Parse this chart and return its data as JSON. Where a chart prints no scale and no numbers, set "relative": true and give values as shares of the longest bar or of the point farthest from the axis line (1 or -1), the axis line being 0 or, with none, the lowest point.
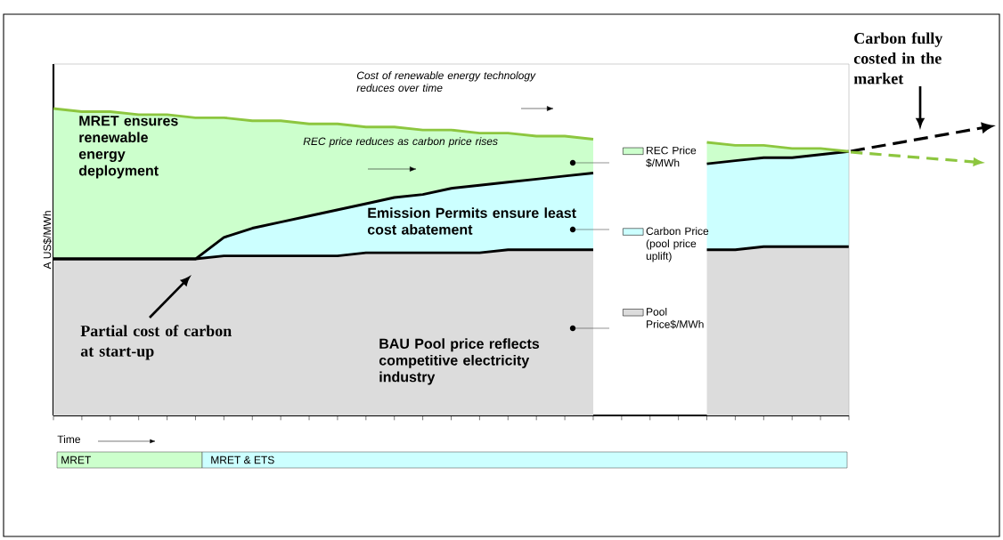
{
  "chart_data": {
    "type": "area",
    "stacked": true,
    "relative": true,
    "legend": "right",
    "ylabel": "A US$/MWh",
    "categories": [
      null,
      null,
      null,
      null,
      null,
      null,
      null,
      null,
      null,
      null,
      null,
      null,
      null,
      null,
      null,
      null,
      null,
      null,
      null,
      null,
      null,
      null,
      null,
      null,
      null,
      null,
      null,
      null,
      null
    ],
    "series": [
      {
        "name": "Pool Price$/MWh",
        "color": "#dcdcdc",
        "values": [
          0.51,
          0.51,
          0.51,
          0.51,
          0.51,
          0.51,
          0.52,
          0.52,
          0.52,
          0.52,
          0.52,
          0.53,
          0.53,
          0.53,
          0.53,
          0.53,
          0.54,
          0.54,
          0.54,
          0.54,
          null,
          null,
          null,
          0.54,
          0.54,
          0.55,
          0.55,
          0.55,
          0.55
        ]
      },
      {
        "name": "Carbon Price (pool price uplift)",
        "color": "#ccffff",
        "values": [
          0,
          0,
          0,
          0,
          0,
          0,
          0.06,
          0.09,
          0.11,
          0.13,
          0.15,
          0.16,
          0.18,
          0.19,
          0.21,
          0.22,
          0.22,
          0.23,
          0.24,
          0.25,
          null,
          null,
          null,
          0.28,
          0.29,
          0.29,
          0.29,
          0.3,
          0.31
        ]
      },
      {
        "name": "REC Price $/MWh",
        "color": "#ccffcc",
        "values": [
          0.49,
          0.48,
          0.48,
          0.47,
          0.47,
          0.46,
          0.39,
          0.35,
          0.33,
          0.3,
          0.28,
          0.25,
          0.23,
          0.21,
          0.19,
          0.17,
          0.16,
          0.14,
          0.13,
          0.11,
          null,
          null,
          null,
          0.07,
          0.05,
          0.04,
          0.03,
          0.02,
          0.0
        ]
      }
    ],
    "annotations": [
      "*Cost of renewable energy technology reduces over time*",
      "*REC price reduces as carbon price rises*",
      "MRET ensures renewable energy deployment",
      "Emission Permits ensure least cost abatement",
      "BAU Pool price reflects competitive electricity industry",
      "Partial cost of carbon at start-up",
      "Carbon fully costed in the market",
      "Time",
      "MRET",
      "MRET & ETS"
    ]
  }
}
